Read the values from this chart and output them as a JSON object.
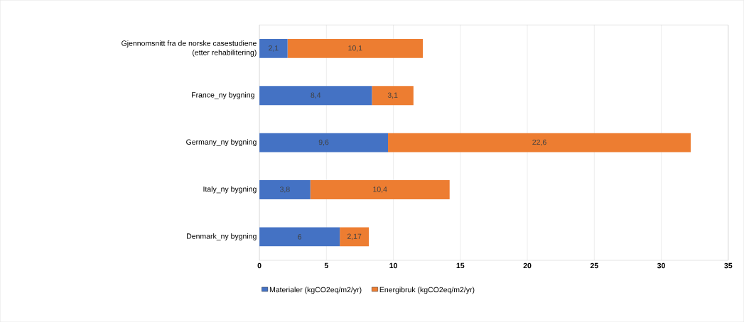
{
  "chart_data": {
    "type": "bar",
    "orientation": "horizontal",
    "stacked": true,
    "categories": [
      "Gjennomsnitt fra de norske casestudiene (etter rehabilitering)",
      "France_ny bygning ",
      "Germany_ny bygning",
      "Italy_ny bygning",
      "Denmark_ny bygning"
    ],
    "series": [
      {
        "name": "Materialer (kgCO2eq/m2/yr)",
        "color": "#4472c4",
        "values": [
          2.1,
          8.4,
          9.6,
          3.8,
          6
        ],
        "value_labels": [
          "2,1",
          "8,4",
          "9,6",
          "3,8",
          "6"
        ]
      },
      {
        "name": "Energibruk  (kgCO2eq/m2/yr)",
        "color": "#ed7d31",
        "values": [
          10.1,
          3.1,
          22.6,
          10.4,
          2.17
        ],
        "value_labels": [
          "10,1",
          "3,1",
          "22,6",
          "10,4",
          "2,17"
        ]
      }
    ],
    "xlim": [
      0,
      35
    ],
    "xticks": [
      0,
      5,
      10,
      15,
      20,
      25,
      30,
      35
    ],
    "grid": "x",
    "legend": "bottom"
  }
}
